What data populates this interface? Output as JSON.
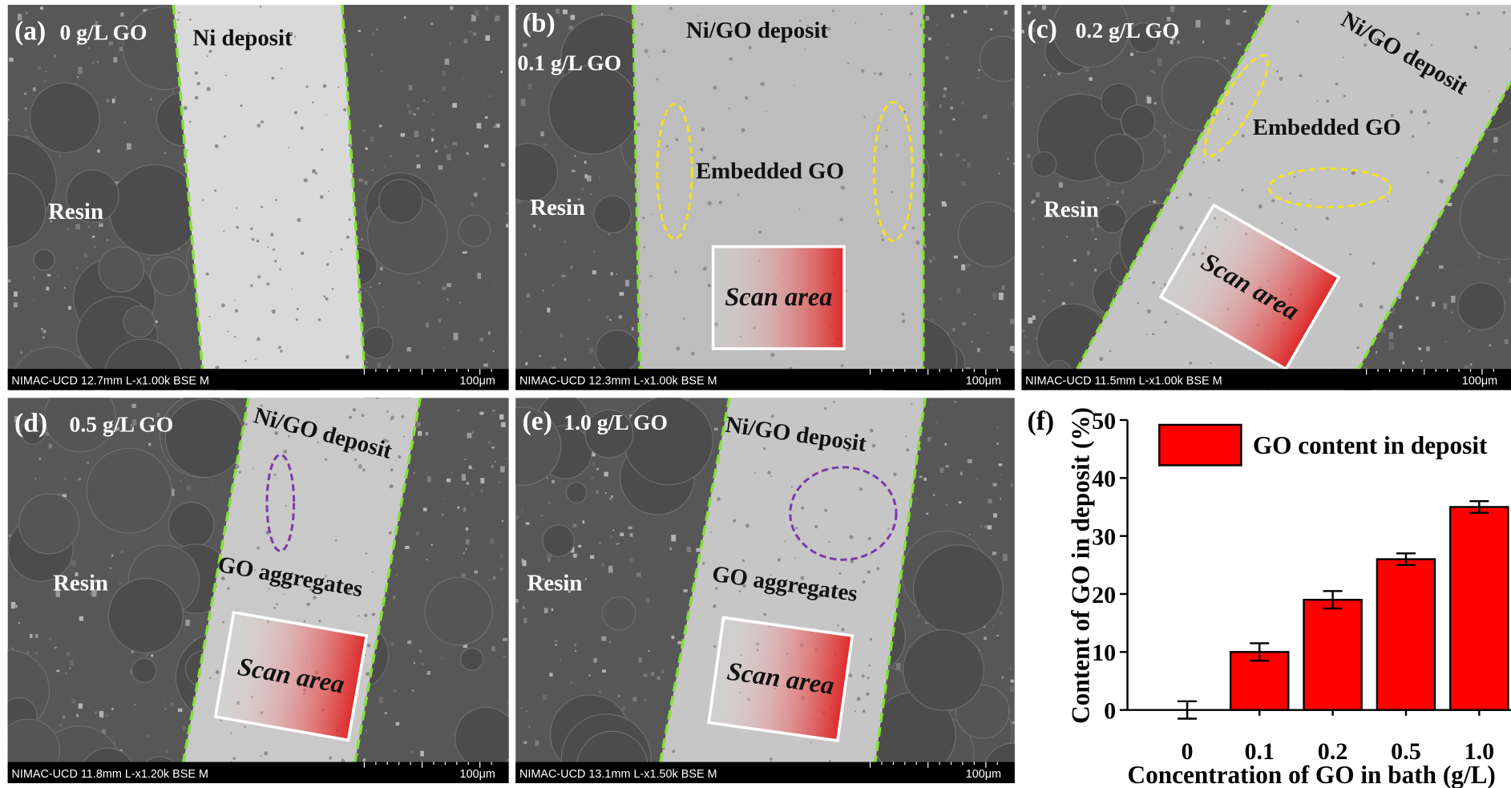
{
  "panels": [
    {
      "label": "(a)",
      "concentration": "0 g/L GO",
      "deposit": "Ni deposit",
      "resin": "Resin",
      "info": "NIMAC-UCD 12.7mm L-x1.00k BSE M",
      "scale_bar": "100μm"
    },
    {
      "label": "(b)",
      "concentration": "0.1 g/L GO",
      "deposit": "Ni/GO deposit",
      "resin": "Resin",
      "annotation": "Embedded GO",
      "scan": "Scan area",
      "info": "NIMAC-UCD 12.3mm L-x1.00k BSE M",
      "scale_bar": "100μm"
    },
    {
      "label": "(c)",
      "concentration": "0.2 g/L GO",
      "deposit": "Ni/GO deposit",
      "resin": "Resin",
      "annotation": "Embedded GO",
      "scan": "Scan area",
      "info": "NIMAC-UCD 11.5mm L-x1.00k BSE M",
      "scale_bar": "100μm"
    },
    {
      "label": "(d)",
      "concentration": "0.5 g/L GO",
      "deposit": "Ni/GO deposit",
      "resin": "Resin",
      "annotation": "GO aggregates",
      "scan": "Scan area",
      "info": "NIMAC-UCD 11.8mm L-x1.20k BSE M",
      "scale_bar": "100μm"
    },
    {
      "label": "(e)",
      "concentration": "1.0 g/L GO",
      "deposit": "Ni/GO deposit",
      "resin": "Resin",
      "annotation": "GO aggregates",
      "scan": "Scan area",
      "info": "NIMAC-UCD 13.1mm L-x1.50k BSE M",
      "scale_bar": "100μm"
    }
  ],
  "chart_data": {
    "type": "bar",
    "panel_label": "(f)",
    "x_label": "Concentration of GO in bath (g/L)",
    "y_label": "Content of GO in deposit (%)",
    "categories": [
      "0",
      "0.1",
      "0.2",
      "0.5",
      "1.0"
    ],
    "series": [
      {
        "name": "GO content in deposit",
        "color": "#ff0000",
        "values": [
          0,
          10,
          19,
          26,
          35
        ],
        "errors": [
          1.5,
          1.5,
          1.5,
          1,
          1
        ]
      }
    ],
    "ylim": [
      0,
      50
    ],
    "yticks": [
      0,
      10,
      20,
      30,
      40,
      50
    ],
    "legend": "top-left"
  }
}
